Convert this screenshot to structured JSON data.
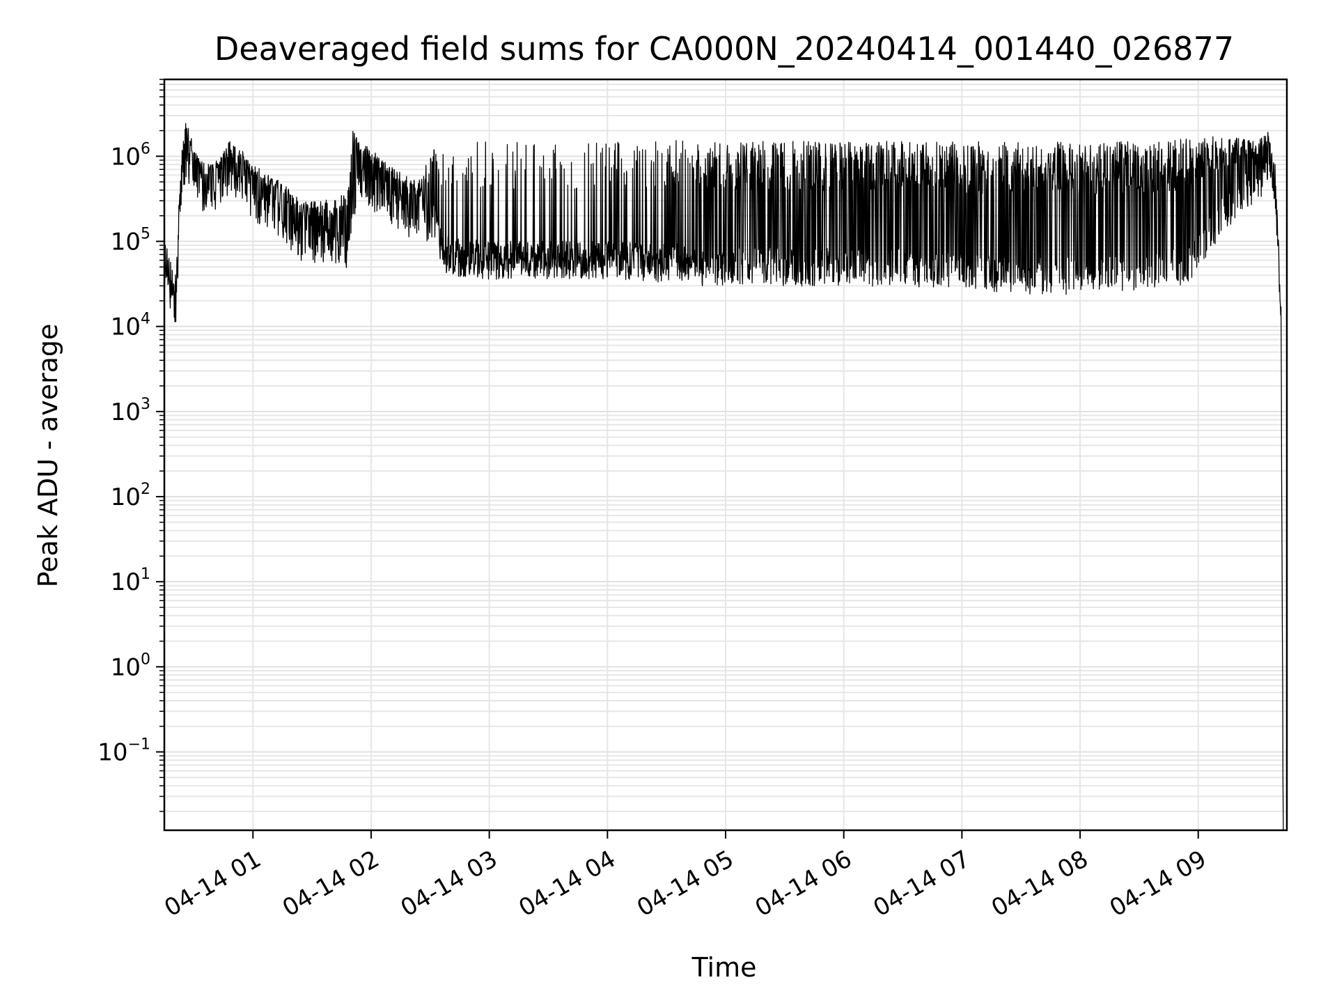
{
  "chart_data": {
    "type": "line",
    "title": "Deaveraged field sums for CA000N_20240414_001440_026877",
    "xlabel": "Time",
    "ylabel": "Peak ADU - average",
    "yscale": "log",
    "ylim": [
      0.012,
      8000000
    ],
    "xlim_hours": [
      0.25,
      9.75
    ],
    "grid": true,
    "x_ticks": [
      {
        "value": 1,
        "label": "04-14 01"
      },
      {
        "value": 2,
        "label": "04-14 02"
      },
      {
        "value": 3,
        "label": "04-14 03"
      },
      {
        "value": 4,
        "label": "04-14 04"
      },
      {
        "value": 5,
        "label": "04-14 05"
      },
      {
        "value": 6,
        "label": "04-14 06"
      },
      {
        "value": 7,
        "label": "04-14 07"
      },
      {
        "value": 8,
        "label": "04-14 08"
      },
      {
        "value": 9,
        "label": "04-14 09"
      }
    ],
    "y_ticks": [
      {
        "value": 0.1,
        "base": "10",
        "exp": "−1"
      },
      {
        "value": 1,
        "base": "10",
        "exp": "0"
      },
      {
        "value": 10,
        "base": "10",
        "exp": "1"
      },
      {
        "value": 100,
        "base": "10",
        "exp": "2"
      },
      {
        "value": 1000,
        "base": "10",
        "exp": "3"
      },
      {
        "value": 10000,
        "base": "10",
        "exp": "4"
      },
      {
        "value": 100000,
        "base": "10",
        "exp": "5"
      },
      {
        "value": 1000000,
        "base": "10",
        "exp": "6"
      }
    ],
    "series": [
      {
        "name": "field sums",
        "color": "#000000",
        "x_hours": [
          0.25,
          0.28,
          0.31,
          0.33,
          0.35,
          0.38,
          0.4,
          0.43,
          0.47,
          0.5,
          0.55,
          0.6,
          0.7,
          0.8,
          0.9,
          1.0,
          1.2,
          1.4,
          1.6,
          1.8,
          1.85,
          1.9,
          2.0,
          2.2,
          2.4,
          2.55,
          2.6,
          2.7,
          3.0,
          3.5,
          4.0,
          4.5,
          4.7,
          4.8,
          5.0,
          5.5,
          6.0,
          6.5,
          7.0,
          7.5,
          8.0,
          8.5,
          8.9,
          9.0,
          9.2,
          9.4,
          9.5,
          9.55,
          9.6,
          9.65,
          9.68,
          9.7,
          9.72
        ],
        "baseline": [
          40000,
          30000,
          25000,
          20000,
          15000,
          150000,
          500000,
          800000,
          700000,
          450000,
          400000,
          350000,
          400000,
          600000,
          500000,
          300000,
          200000,
          100000,
          90000,
          80000,
          250000,
          600000,
          400000,
          250000,
          150000,
          180000,
          70000,
          65000,
          60000,
          60000,
          60000,
          55000,
          60000,
          50000,
          50000,
          50000,
          50000,
          50000,
          45000,
          40000,
          40000,
          45000,
          50000,
          80000,
          200000,
          400000,
          500000,
          600000,
          1000000,
          400000,
          60000,
          20000,
          0.01
        ],
        "peaks": [
          100000,
          80000,
          60000,
          50000,
          40000,
          500000,
          1200000,
          2500000,
          2000000,
          1200000,
          900000,
          800000,
          900000,
          1500000,
          1200000,
          800000,
          600000,
          300000,
          300000,
          400000,
          2500000,
          1500000,
          1200000,
          700000,
          500000,
          1500000,
          1400000,
          1500000,
          1500000,
          1500000,
          1500000,
          1500000,
          1600000,
          1500000,
          1500000,
          1500000,
          1500000,
          1500000,
          1500000,
          1500000,
          1500000,
          1500000,
          1600000,
          1700000,
          1700000,
          1600000,
          1500000,
          1800000,
          2000000,
          1000000,
          100000,
          30000,
          0.01
        ],
        "spike_rate": [
          0.4,
          0.4,
          0.4,
          0.4,
          0.4,
          0.5,
          0.5,
          0.5,
          0.5,
          0.5,
          0.5,
          0.5,
          0.5,
          0.5,
          0.5,
          0.5,
          0.5,
          0.5,
          0.5,
          0.5,
          0.5,
          0.5,
          0.5,
          0.5,
          0.5,
          0.4,
          0.1,
          0.12,
          0.15,
          0.18,
          0.2,
          0.2,
          0.35,
          0.45,
          0.5,
          0.5,
          0.55,
          0.55,
          0.55,
          0.6,
          0.6,
          0.6,
          0.6,
          0.6,
          0.6,
          0.6,
          0.5,
          0.5,
          0.5,
          0.3,
          0.1,
          0.0,
          0.0
        ]
      }
    ]
  }
}
